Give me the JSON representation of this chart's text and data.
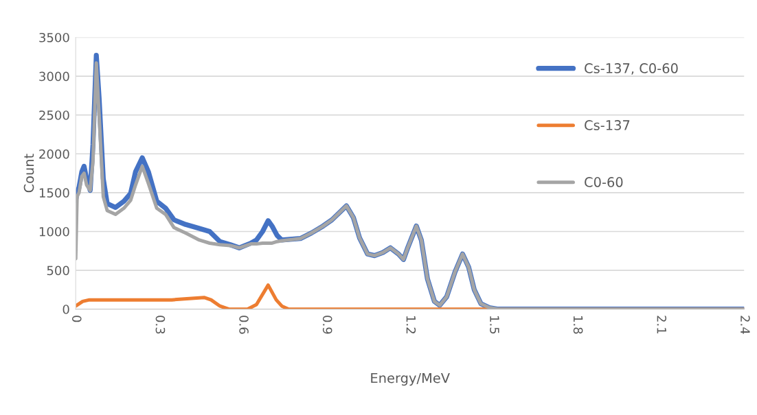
{
  "chart_data": {
    "type": "line",
    "xlabel": "Energy/MeV",
    "ylabel": "Count",
    "xlim": [
      0,
      2.4
    ],
    "xticks": [
      0,
      0.3,
      0.6,
      0.9,
      1.2,
      1.5,
      1.8,
      2.1,
      2.4
    ],
    "ylim": [
      0,
      3500
    ],
    "yticks": [
      0,
      500,
      1000,
      1500,
      2000,
      2500,
      3000,
      3500
    ],
    "grid": "y",
    "legend": "top right",
    "marker": "none",
    "line_style": "solid",
    "series": [
      {
        "name": "Cs-137, C0-60",
        "color": "#4472c4",
        "x": [
          0,
          0.005,
          0.012,
          0.022,
          0.03,
          0.039,
          0.052,
          0.062,
          0.074,
          0.084,
          0.099,
          0.113,
          0.143,
          0.173,
          0.197,
          0.215,
          0.239,
          0.261,
          0.291,
          0.323,
          0.353,
          0.395,
          0.444,
          0.481,
          0.518,
          0.555,
          0.587,
          0.629,
          0.649,
          0.671,
          0.691,
          0.705,
          0.723,
          0.74,
          0.807,
          0.846,
          0.888,
          0.92,
          0.972,
          0.997,
          1.019,
          1.048,
          1.073,
          1.103,
          1.13,
          1.159,
          1.177,
          1.191,
          1.223,
          1.241,
          1.263,
          1.288,
          1.307,
          1.332,
          1.362,
          1.389,
          1.411,
          1.431,
          1.455,
          1.485,
          1.517,
          2.4
        ],
        "values": [
          1400,
          1500,
          1570,
          1770,
          1840,
          1680,
          1530,
          2120,
          3270,
          2720,
          1680,
          1360,
          1310,
          1390,
          1490,
          1770,
          1950,
          1770,
          1390,
          1300,
          1150,
          1090,
          1040,
          1000,
          870,
          830,
          790,
          850,
          890,
          1000,
          1140,
          1070,
          950,
          890,
          910,
          980,
          1070,
          1150,
          1330,
          1180,
          920,
          710,
          690,
          730,
          790,
          710,
          640,
          780,
          1070,
          890,
          390,
          100,
          50,
          160,
          480,
          710,
          540,
          250,
          70,
          20,
          0,
          0
        ]
      },
      {
        "name": "Cs-137",
        "color": "#ed7d31",
        "x": [
          0,
          0.025,
          0.049,
          0.345,
          0.461,
          0.486,
          0.518,
          0.55,
          0.617,
          0.649,
          0.691,
          0.72,
          0.74,
          0.765,
          2.4
        ],
        "values": [
          40,
          100,
          120,
          120,
          150,
          120,
          40,
          0,
          0,
          60,
          310,
          120,
          40,
          0,
          0
        ]
      },
      {
        "name": "C0-60",
        "color": "#a5a5a5",
        "x": [
          0,
          0.005,
          0.012,
          0.022,
          0.03,
          0.039,
          0.052,
          0.062,
          0.074,
          0.084,
          0.099,
          0.113,
          0.143,
          0.173,
          0.197,
          0.215,
          0.239,
          0.261,
          0.291,
          0.323,
          0.353,
          0.395,
          0.444,
          0.481,
          0.518,
          0.555,
          0.587,
          0.629,
          0.649,
          0.671,
          0.691,
          0.705,
          0.723,
          0.74,
          0.807,
          0.846,
          0.888,
          0.92,
          0.972,
          0.997,
          1.019,
          1.048,
          1.073,
          1.103,
          1.13,
          1.159,
          1.177,
          1.191,
          1.223,
          1.241,
          1.263,
          1.288,
          1.307,
          1.332,
          1.362,
          1.389,
          1.411,
          1.431,
          1.455,
          1.485,
          1.517,
          2.4
        ],
        "values": [
          650,
          1450,
          1500,
          1710,
          1750,
          1600,
          1530,
          1900,
          3170,
          2500,
          1450,
          1270,
          1220,
          1300,
          1400,
          1600,
          1840,
          1620,
          1300,
          1220,
          1050,
          980,
          890,
          850,
          830,
          820,
          790,
          840,
          840,
          850,
          850,
          850,
          870,
          880,
          910,
          980,
          1070,
          1150,
          1330,
          1180,
          920,
          710,
          690,
          730,
          790,
          710,
          640,
          780,
          1070,
          890,
          390,
          100,
          50,
          160,
          480,
          710,
          540,
          250,
          70,
          20,
          0,
          0
        ]
      }
    ]
  }
}
